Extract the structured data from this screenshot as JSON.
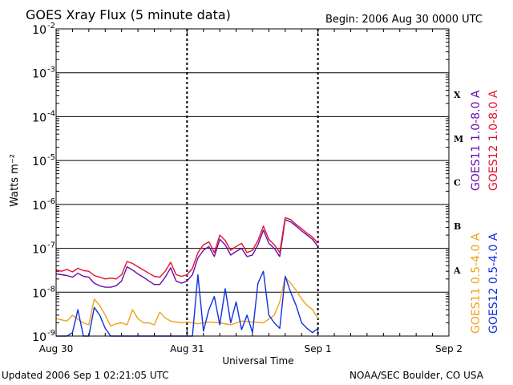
{
  "title": "GOES Xray Flux (5 minute data)",
  "begin_label": "Begin:  2006 Aug 30 0000 UTC",
  "updated_label": "Updated 2006 Sep  1 02:21:05 UTC",
  "source_label": "NOAA/SEC Boulder, CO USA",
  "colors": {
    "goes11_long": "#6a0dad",
    "goes12_long": "#e8102a",
    "goes11_short": "#f0a01c",
    "goes12_short": "#1030e0",
    "grid": "#000000"
  },
  "chart_data": {
    "type": "line",
    "title": "GOES Xray Flux (5 minute data)",
    "xlabel": "Universal Time",
    "ylabel": "Watts m⁻²",
    "y_scale": "log",
    "ylim": [
      1e-09,
      0.01
    ],
    "xlim": [
      0,
      72
    ],
    "x_unit": "hours since 2006 Aug 30 0000 UTC",
    "x_ticks": [
      {
        "value": 0,
        "label": "Aug 30"
      },
      {
        "value": 24,
        "label": "Aug 31"
      },
      {
        "value": 48,
        "label": "Sep 1"
      },
      {
        "value": 72,
        "label": "Sep 2"
      }
    ],
    "y_ticks": [
      {
        "exp": -2,
        "base": "10",
        "sup": "-2"
      },
      {
        "exp": -3,
        "base": "10",
        "sup": "-3"
      },
      {
        "exp": -4,
        "base": "10",
        "sup": "-4"
      },
      {
        "exp": -5,
        "base": "10",
        "sup": "-5"
      },
      {
        "exp": -6,
        "base": "10",
        "sup": "-6"
      },
      {
        "exp": -7,
        "base": "10",
        "sup": "-7"
      },
      {
        "exp": -8,
        "base": "10",
        "sup": "-8"
      },
      {
        "exp": -9,
        "base": "10",
        "sup": "-9"
      }
    ],
    "flare_classes": [
      {
        "label": "X",
        "exp": -3.5
      },
      {
        "label": "M",
        "exp": -4.5
      },
      {
        "label": "C",
        "exp": -5.5
      },
      {
        "label": "B",
        "exp": -6.5
      },
      {
        "label": "A",
        "exp": -7.5
      }
    ],
    "legend_right": [
      {
        "label": "GOES11 1.0-8.0 A",
        "color": "#6a0dad"
      },
      {
        "label": "GOES12 1.0-8.0 A",
        "color": "#e8102a"
      },
      {
        "label": "GOES11 0.5-4.0 A",
        "color": "#f0a01c"
      },
      {
        "label": "GOES12 0.5-4.0 A",
        "color": "#1030e0"
      }
    ],
    "series": [
      {
        "name": "GOES12 1.0-8.0 A",
        "color": "#e8102a",
        "x": [
          0,
          1,
          2,
          3,
          4,
          5,
          6,
          7,
          8,
          9,
          10,
          11,
          12,
          13,
          14,
          15,
          16,
          17,
          18,
          19,
          20,
          21,
          22,
          23,
          24,
          25,
          26,
          27,
          28,
          29,
          30,
          31,
          32,
          33,
          34,
          35,
          36,
          37,
          38,
          39,
          40,
          41,
          42,
          43,
          44,
          45,
          46,
          47,
          48
        ],
        "y": [
          3.2e-08,
          3e-08,
          3.3e-08,
          2.9e-08,
          3.5e-08,
          3.1e-08,
          3e-08,
          2.4e-08,
          2.2e-08,
          2e-08,
          2.1e-08,
          2e-08,
          2.5e-08,
          5e-08,
          4.5e-08,
          3.8e-08,
          3.2e-08,
          2.7e-08,
          2.3e-08,
          2.2e-08,
          3e-08,
          4.8e-08,
          2.5e-08,
          2.3e-08,
          2.5e-08,
          3.5e-08,
          8e-08,
          1.2e-07,
          1.4e-07,
          8e-08,
          2e-07,
          1.5e-07,
          9e-08,
          1.1e-07,
          1.3e-07,
          8e-08,
          9e-08,
          1.5e-07,
          3.2e-07,
          1.6e-07,
          1.2e-07,
          8e-08,
          5e-07,
          4.5e-07,
          3.5e-07,
          2.8e-07,
          2.2e-07,
          1.8e-07,
          1.3e-07
        ]
      },
      {
        "name": "GOES11 1.0-8.0 A",
        "color": "#6a0dad",
        "x": [
          0,
          1,
          2,
          3,
          4,
          5,
          6,
          7,
          8,
          9,
          10,
          11,
          12,
          13,
          14,
          15,
          16,
          17,
          18,
          19,
          20,
          21,
          22,
          23,
          24,
          25,
          26,
          27,
          28,
          29,
          30,
          31,
          32,
          33,
          34,
          35,
          36,
          37,
          38,
          39,
          40,
          41,
          42,
          43,
          44,
          45,
          46,
          47,
          48
        ],
        "y": [
          2.6e-08,
          2.5e-08,
          2.4e-08,
          2.2e-08,
          2.7e-08,
          2.3e-08,
          2.2e-08,
          1.6e-08,
          1.4e-08,
          1.3e-08,
          1.3e-08,
          1.4e-08,
          1.8e-08,
          3.8e-08,
          3.2e-08,
          2.6e-08,
          2.2e-08,
          1.8e-08,
          1.5e-08,
          1.5e-08,
          2.2e-08,
          3.6e-08,
          1.8e-08,
          1.6e-08,
          1.8e-08,
          2.5e-08,
          6e-08,
          9e-08,
          1.1e-07,
          6.5e-08,
          1.6e-07,
          1.2e-07,
          7e-08,
          8.5e-08,
          1e-07,
          6.5e-08,
          7e-08,
          1.2e-07,
          2.6e-07,
          1.3e-07,
          1e-07,
          6.5e-08,
          4.5e-07,
          4e-07,
          3.2e-07,
          2.5e-07,
          2e-07,
          1.6e-07,
          1.1e-07
        ]
      },
      {
        "name": "GOES11 0.5-4.0 A",
        "color": "#f0a01c",
        "x": [
          0,
          2,
          3,
          4,
          5,
          6,
          7,
          8,
          9,
          10,
          11,
          12,
          13,
          14,
          15,
          16,
          17,
          18,
          19,
          20,
          21,
          22,
          23,
          24,
          26,
          28,
          30,
          32,
          34,
          36,
          38,
          40,
          41,
          42,
          43,
          44,
          45,
          46,
          47,
          48
        ],
        "y": [
          2.5e-09,
          2.2e-09,
          3e-09,
          2.4e-09,
          2e-09,
          1.8e-09,
          7e-09,
          5e-09,
          3e-09,
          1.7e-09,
          1.9e-09,
          2e-09,
          1.8e-09,
          4e-09,
          2.5e-09,
          2e-09,
          2e-09,
          1.8e-09,
          3.5e-09,
          2.6e-09,
          2.2e-09,
          2.1e-09,
          2e-09,
          2.1e-09,
          1.9e-09,
          2.1e-09,
          2e-09,
          1.8e-09,
          2.2e-09,
          2.1e-09,
          2e-09,
          3e-09,
          6e-09,
          2.2e-08,
          1.6e-08,
          1.1e-08,
          7e-09,
          5e-09,
          4e-09,
          2.5e-09
        ]
      },
      {
        "name": "GOES12 0.5-4.0 A",
        "color": "#1030e0",
        "x": [
          0,
          1,
          2,
          3,
          4,
          5,
          6,
          7,
          8,
          9,
          10,
          11,
          12,
          13,
          14,
          15,
          16,
          17,
          18,
          19,
          20,
          21,
          22,
          23,
          24,
          25,
          26,
          27,
          28,
          29,
          30,
          31,
          32,
          33,
          34,
          35,
          36,
          37,
          38,
          39,
          40,
          41,
          42,
          43,
          44,
          45,
          46,
          47,
          48
        ],
        "y": [
          1e-09,
          1e-09,
          1e-09,
          1.2e-09,
          4e-09,
          1e-09,
          1e-09,
          4.5e-09,
          3e-09,
          1.5e-09,
          1e-09,
          1e-09,
          1e-09,
          1e-09,
          1e-09,
          1e-09,
          1e-09,
          1e-09,
          1e-09,
          1e-09,
          1e-09,
          1e-09,
          1e-09,
          1e-09,
          1e-09,
          1e-09,
          2.5e-08,
          1.3e-09,
          4e-09,
          8e-09,
          1.8e-09,
          1.2e-08,
          2e-09,
          6e-09,
          1.4e-09,
          3e-09,
          1.2e-09,
          1.6e-08,
          3e-08,
          3e-09,
          2e-09,
          1.5e-09,
          2.3e-08,
          1e-08,
          5e-09,
          2e-09,
          1.5e-09,
          1.2e-09,
          1.5e-09
        ]
      }
    ],
    "grid": true,
    "legend_placement": "right, vertical"
  }
}
